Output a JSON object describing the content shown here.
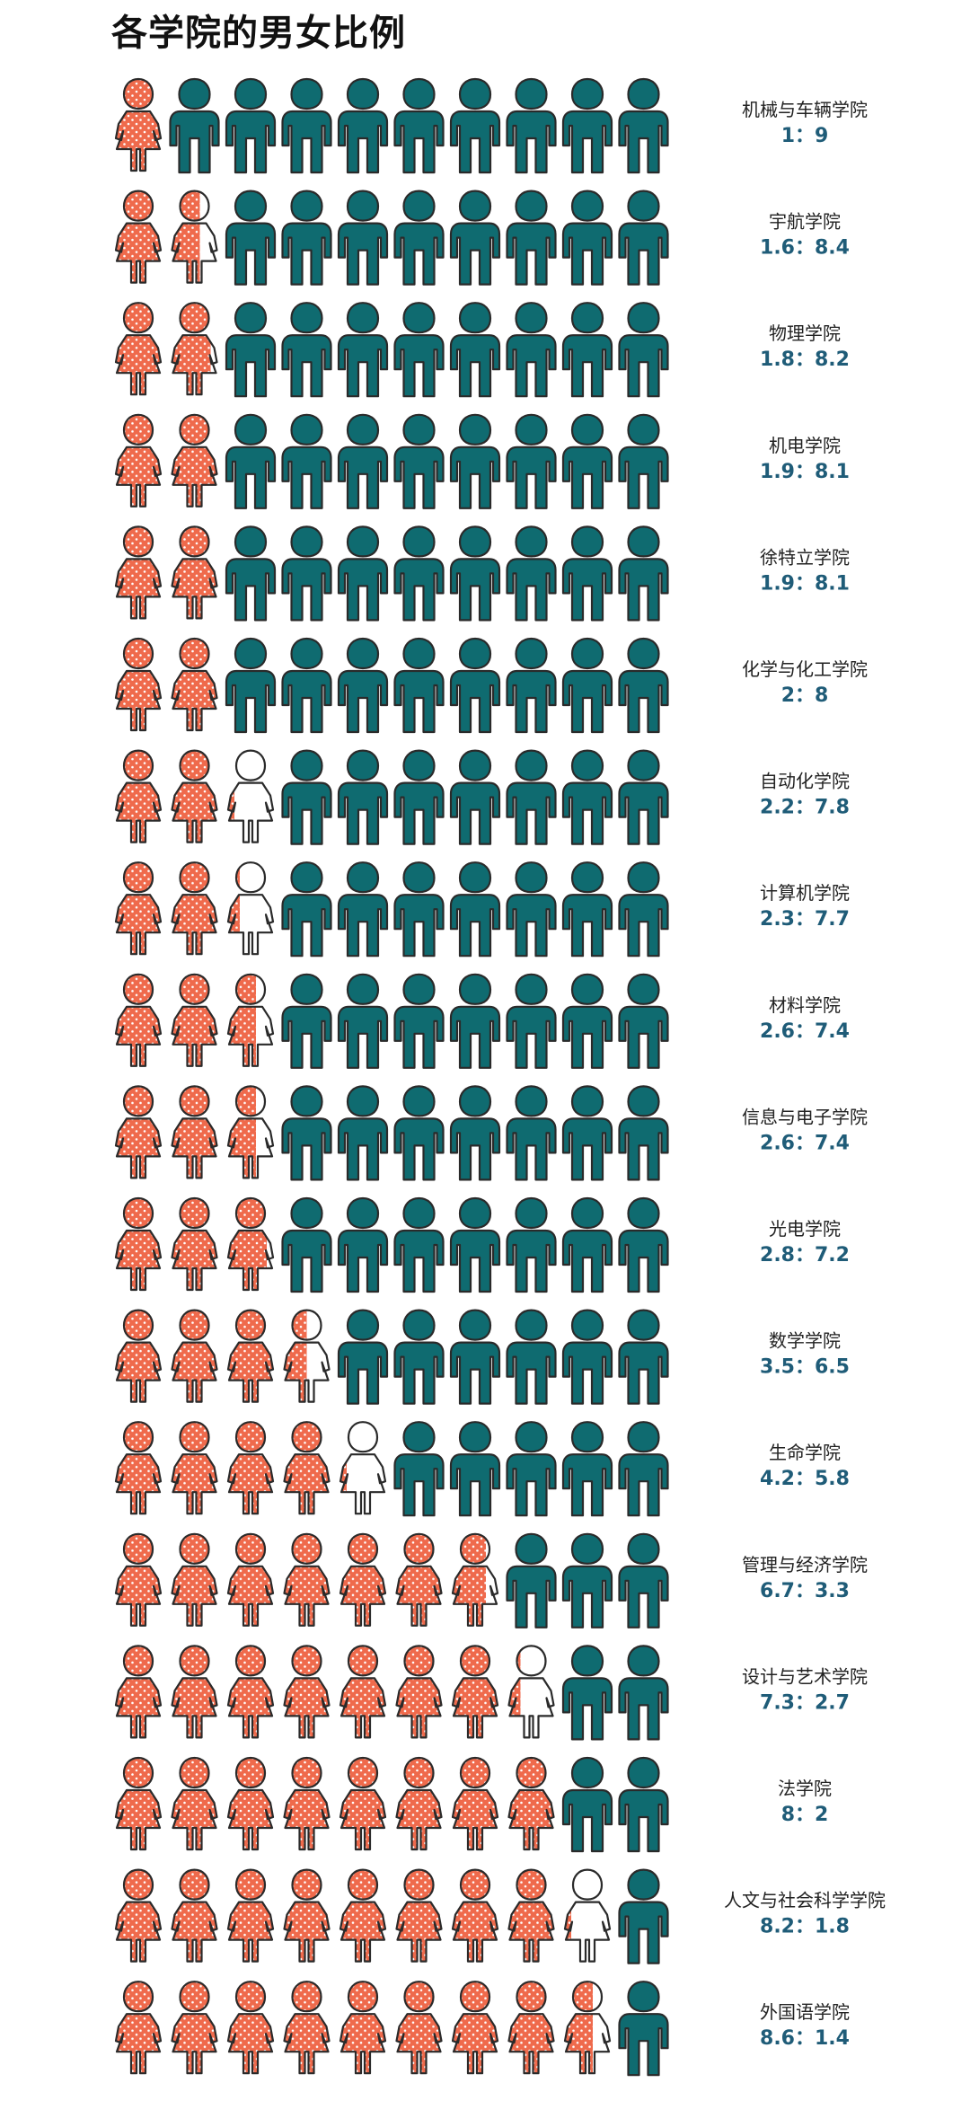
{
  "title": "各学院的男女比例",
  "colors": {
    "female": "#ef6a4c",
    "male": "#0f6b70",
    "outline": "#2a2a2a",
    "dots": "#ffffff"
  },
  "chart_data": {
    "type": "pictogram",
    "title": "各学院的男女比例",
    "icons_per_row": 10,
    "series": [],
    "rows": [
      {
        "name": "机械与车辆学院",
        "ratio_label": "1：9",
        "female": 1.0,
        "male": 9.0
      },
      {
        "name": "宇航学院",
        "ratio_label": "1.6：8.4",
        "female": 1.6,
        "male": 8.4
      },
      {
        "name": "物理学院",
        "ratio_label": "1.8：8.2",
        "female": 1.8,
        "male": 8.2
      },
      {
        "name": "机电学院",
        "ratio_label": "1.9：8.1",
        "female": 1.9,
        "male": 8.1
      },
      {
        "name": "徐特立学院",
        "ratio_label": "1.9：8.1",
        "female": 1.9,
        "male": 8.1
      },
      {
        "name": "化学与化工学院",
        "ratio_label": "2：8",
        "female": 2.0,
        "male": 8.0
      },
      {
        "name": "自动化学院",
        "ratio_label": "2.2：7.8",
        "female": 2.2,
        "male": 7.8
      },
      {
        "name": "计算机学院",
        "ratio_label": "2.3：7.7",
        "female": 2.3,
        "male": 7.7
      },
      {
        "name": "材料学院",
        "ratio_label": "2.6：7.4",
        "female": 2.6,
        "male": 7.4
      },
      {
        "name": "信息与电子学院",
        "ratio_label": "2.6：7.4",
        "female": 2.6,
        "male": 7.4
      },
      {
        "name": "光电学院",
        "ratio_label": "2.8：7.2",
        "female": 2.8,
        "male": 7.2
      },
      {
        "name": "数学学院",
        "ratio_label": "3.5：6.5",
        "female": 3.5,
        "male": 6.5
      },
      {
        "name": "生命学院",
        "ratio_label": "4.2：5.8",
        "female": 4.2,
        "male": 5.8
      },
      {
        "name": "管理与经济学院",
        "ratio_label": "6.7：3.3",
        "female": 6.7,
        "male": 3.3
      },
      {
        "name": "设计与艺术学院",
        "ratio_label": "7.3：2.7",
        "female": 7.3,
        "male": 2.7
      },
      {
        "name": "法学院",
        "ratio_label": "8：2",
        "female": 8.0,
        "male": 2.0
      },
      {
        "name": "人文与社会科学学院",
        "ratio_label": "8.2：1.8",
        "female": 8.2,
        "male": 1.8
      },
      {
        "name": "外国语学院",
        "ratio_label": "8.6：1.4",
        "female": 8.6,
        "male": 1.4
      }
    ]
  }
}
